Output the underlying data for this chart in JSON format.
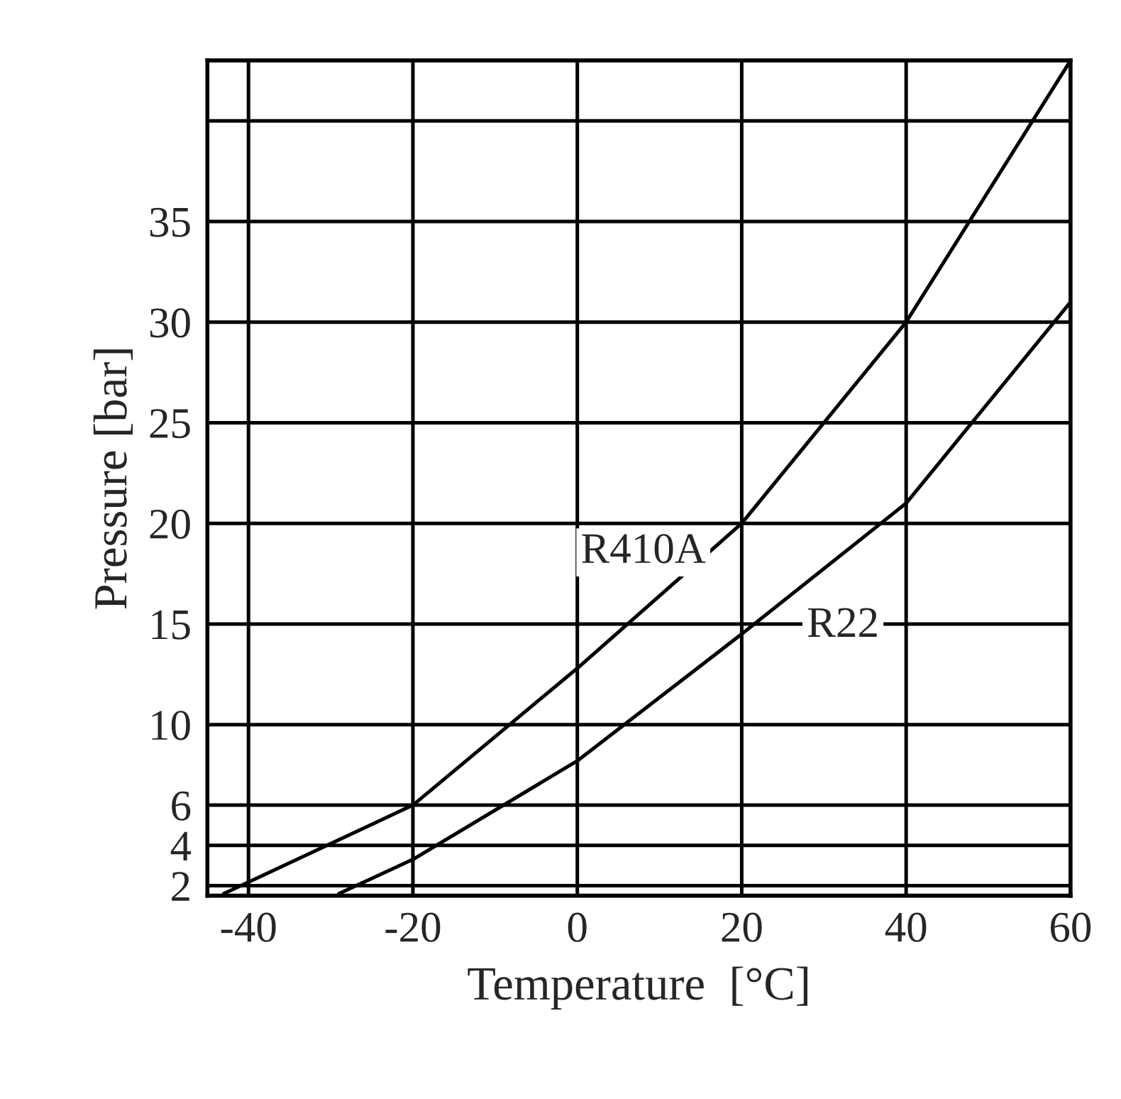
{
  "chart_data": {
    "type": "line",
    "xlabel": "Temperature  [°C]",
    "ylabel": "Pressure [bar]",
    "xlim": [
      -45,
      60
    ],
    "xticks": [
      -40,
      -20,
      0,
      20,
      40,
      60
    ],
    "ylim": [
      1.5,
      43
    ],
    "yticks": [
      2,
      4,
      6,
      10,
      15,
      20,
      25,
      30,
      35,
      {
        "value": 40,
        "label": null
      }
    ],
    "grid": true,
    "legend": false,
    "marker": "none",
    "line_style": "solid",
    "series": [
      {
        "name": "R410A",
        "color": "#000000",
        "x": [
          -43,
          -20,
          0,
          20,
          40,
          60
        ],
        "values": [
          1.6,
          6,
          12.8,
          20,
          30,
          43
        ]
      },
      {
        "name": "R22",
        "color": "#000000",
        "x": [
          -29,
          -20,
          0,
          20,
          40,
          60
        ],
        "values": [
          1.6,
          3.3,
          8.2,
          14.5,
          21,
          31
        ]
      }
    ]
  }
}
